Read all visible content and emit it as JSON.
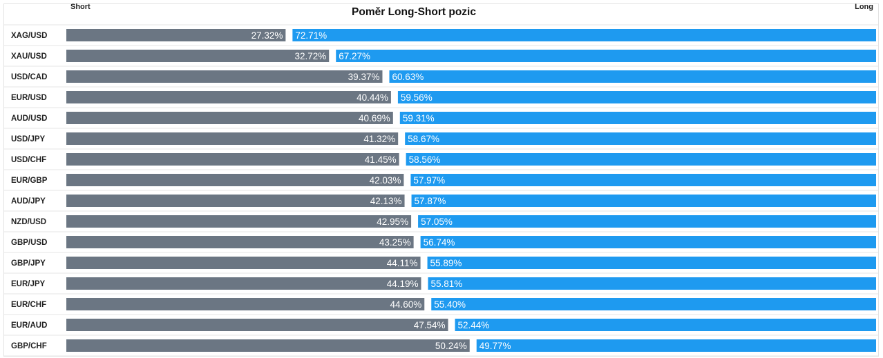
{
  "chart_data": {
    "type": "bar",
    "title": "Poměr Long-Short pozic",
    "short_label": "Short",
    "long_label": "Long",
    "colors": {
      "short": "#6b7683",
      "long": "#1e9af0",
      "row_line": "#e6e6e6",
      "pair_text": "#222222"
    },
    "categories": [
      "XAG/USD",
      "XAU/USD",
      "USD/CAD",
      "EUR/USD",
      "AUD/USD",
      "USD/JPY",
      "USD/CHF",
      "EUR/GBP",
      "AUD/JPY",
      "NZD/USD",
      "GBP/USD",
      "GBP/JPY",
      "EUR/JPY",
      "EUR/CHF",
      "EUR/AUD",
      "GBP/CHF"
    ],
    "series": [
      {
        "name": "Short",
        "values": [
          27.32,
          32.72,
          39.37,
          40.44,
          40.69,
          41.32,
          41.45,
          42.03,
          42.13,
          42.95,
          43.25,
          44.11,
          44.19,
          44.6,
          47.54,
          50.24
        ],
        "labels": [
          "27.32%",
          "32.72%",
          "39.37%",
          "40.44%",
          "40.69%",
          "41.32%",
          "41.45%",
          "42.03%",
          "42.13%",
          "42.95%",
          "43.25%",
          "44.11%",
          "44.19%",
          "44.60%",
          "47.54%",
          "50.24%"
        ]
      },
      {
        "name": "Long",
        "values": [
          72.71,
          67.27,
          60.63,
          59.56,
          59.31,
          58.67,
          58.56,
          57.97,
          57.87,
          57.05,
          56.74,
          55.89,
          55.81,
          55.4,
          52.44,
          49.77
        ],
        "labels": [
          "72.71%",
          "67.27%",
          "60.63%",
          "59.56%",
          "59.31%",
          "58.67%",
          "58.56%",
          "57.97%",
          "57.87%",
          "57.05%",
          "56.74%",
          "55.89%",
          "55.81%",
          "55.40%",
          "52.44%",
          "49.77%"
        ]
      }
    ]
  }
}
